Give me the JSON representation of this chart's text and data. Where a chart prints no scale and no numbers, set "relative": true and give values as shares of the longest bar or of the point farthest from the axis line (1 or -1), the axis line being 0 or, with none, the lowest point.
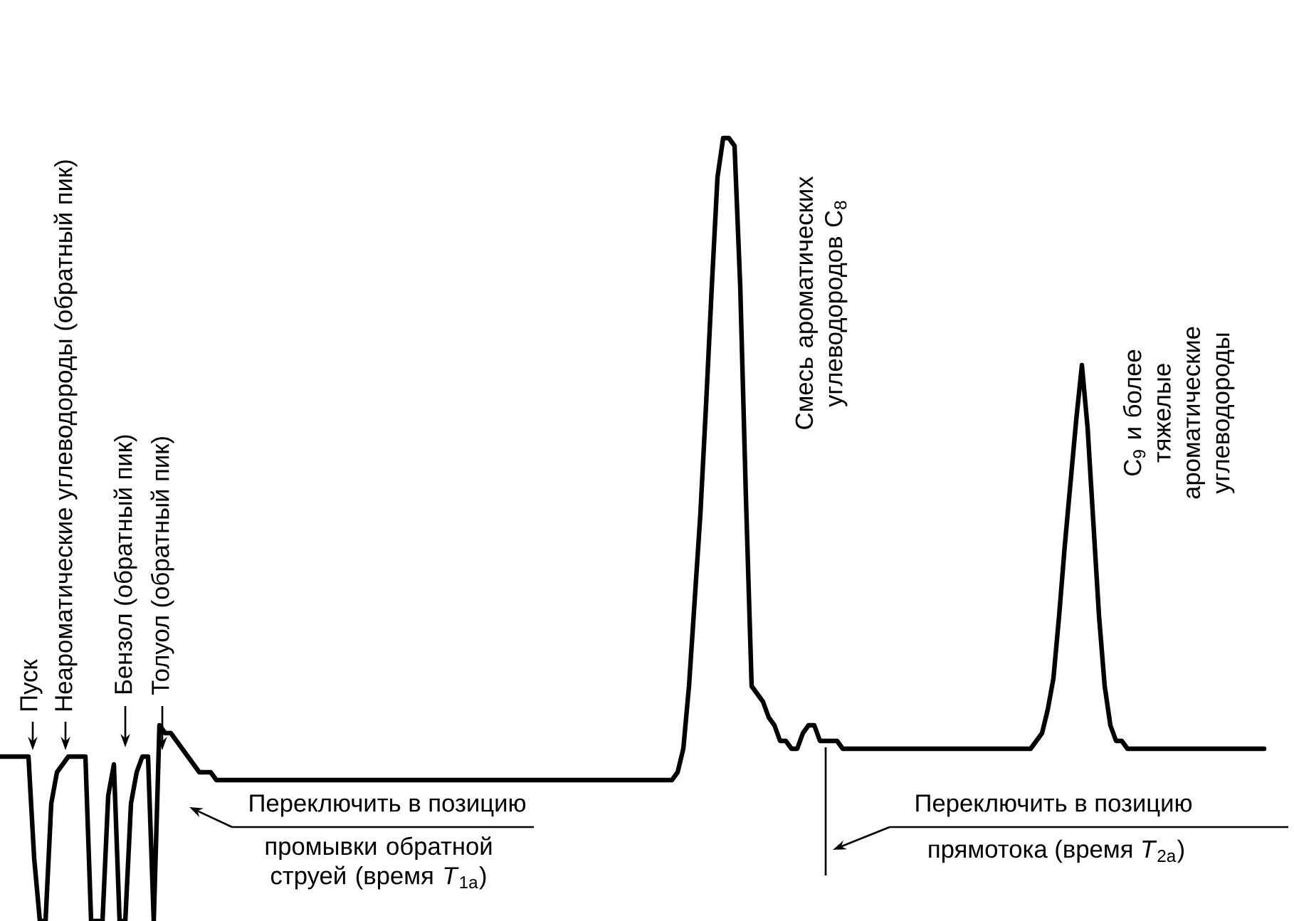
{
  "chart_data": {
    "type": "line",
    "relative": true,
    "categories": [
      null,
      null,
      null,
      null,
      null,
      null,
      null,
      null,
      null,
      null,
      null,
      null,
      null,
      null,
      null,
      null,
      null,
      null,
      null,
      null,
      null,
      null,
      null,
      null,
      null,
      null,
      null,
      null,
      null,
      null,
      null,
      null,
      null,
      null,
      null,
      null,
      null,
      null,
      null,
      null,
      null,
      null,
      null,
      null,
      null,
      null,
      null,
      null,
      null,
      null,
      null,
      null,
      null,
      null,
      null,
      null,
      null,
      null,
      null,
      null,
      null,
      null,
      null,
      null,
      null,
      null,
      null,
      null,
      null,
      null,
      null,
      null,
      null,
      null,
      null,
      null,
      null,
      null,
      null,
      null,
      null,
      null,
      null,
      null,
      null,
      null,
      null,
      null,
      null,
      null,
      null,
      null,
      null,
      null,
      null,
      null,
      null,
      null,
      null,
      null,
      null,
      null,
      null,
      null,
      null,
      null,
      null,
      null,
      null,
      null,
      null,
      null,
      null,
      null,
      null,
      null,
      null,
      null,
      null,
      null,
      null,
      null,
      null,
      null,
      null,
      null,
      null,
      null,
      null,
      null,
      null,
      null,
      null,
      null,
      null,
      null,
      null,
      null,
      null,
      null,
      null,
      null,
      null,
      null,
      null,
      null,
      null,
      null,
      null,
      null,
      null,
      null,
      null,
      null,
      null,
      null,
      null,
      null,
      null,
      null,
      null,
      null,
      null,
      null,
      null,
      null,
      null,
      null,
      null,
      null,
      null,
      null,
      null,
      null,
      null,
      null,
      null,
      null,
      null,
      null,
      null,
      null,
      null,
      null,
      null,
      null,
      null,
      null,
      null,
      null,
      null,
      null,
      null,
      null,
      null,
      null,
      null,
      null,
      null,
      null,
      null,
      null,
      null,
      null,
      null,
      null,
      null,
      null,
      null,
      null,
      null,
      null,
      null,
      null,
      null,
      null,
      null,
      null,
      null,
      null,
      null,
      null,
      null
    ],
    "series": [
      {
        "color": "#000000",
        "line_style": "solid",
        "values": [
          0.21,
          0.21,
          0.21,
          0.21,
          0.21,
          0.21,
          0.08,
          0,
          0,
          0.15,
          0.19,
          0.2,
          0.21,
          0.21,
          0.21,
          0.21,
          0,
          0,
          0,
          0.16,
          0.2,
          0,
          0,
          0.15,
          0.19,
          0.21,
          0.21,
          0,
          0.25,
          0.24,
          0.24,
          0.23,
          0.22,
          0.21,
          0.2,
          0.19,
          0.19,
          0.19,
          0.18,
          0.18,
          0.18,
          0.18,
          0.18,
          0.18,
          0.18,
          0.18,
          0.18,
          0.18,
          0.18,
          0.18,
          0.18,
          0.18,
          0.18,
          0.18,
          0.18,
          0.18,
          0.18,
          0.18,
          0.18,
          0.18,
          0.18,
          0.18,
          0.18,
          0.18,
          0.18,
          0.18,
          0.18,
          0.18,
          0.18,
          0.18,
          0.18,
          0.18,
          0.18,
          0.18,
          0.18,
          0.18,
          0.18,
          0.18,
          0.18,
          0.18,
          0.18,
          0.18,
          0.18,
          0.18,
          0.18,
          0.18,
          0.18,
          0.18,
          0.18,
          0.18,
          0.18,
          0.18,
          0.18,
          0.18,
          0.18,
          0.18,
          0.18,
          0.18,
          0.18,
          0.18,
          0.18,
          0.18,
          0.18,
          0.18,
          0.18,
          0.18,
          0.18,
          0.18,
          0.18,
          0.18,
          0.18,
          0.18,
          0.18,
          0.18,
          0.18,
          0.18,
          0.18,
          0.18,
          0.18,
          0.19,
          0.22,
          0.3,
          0.41,
          0.52,
          0.66,
          0.81,
          0.95,
          1,
          1,
          0.99,
          0.81,
          0.54,
          0.3,
          0.29,
          0.28,
          0.26,
          0.25,
          0.23,
          0.23,
          0.22,
          0.22,
          0.24,
          0.25,
          0.25,
          0.23,
          0.23,
          0.23,
          0.23,
          0.22,
          0.22,
          0.22,
          0.22,
          0.22,
          0.22,
          0.22,
          0.22,
          0.22,
          0.22,
          0.22,
          0.22,
          0.22,
          0.22,
          0.22,
          0.22,
          0.22,
          0.22,
          0.22,
          0.22,
          0.22,
          0.22,
          0.22,
          0.22,
          0.22,
          0.22,
          0.22,
          0.22,
          0.22,
          0.22,
          0.22,
          0.22,
          0.22,
          0.22,
          0.23,
          0.24,
          0.27,
          0.31,
          0.39,
          0.48,
          0.56,
          0.64,
          0.71,
          0.63,
          0.51,
          0.39,
          0.3,
          0.25,
          0.23,
          0.23,
          0.22,
          0.22,
          0.22,
          0.22,
          0.22,
          0.22,
          0.22,
          0.22,
          0.22,
          0.22,
          0.22,
          0.22,
          0.22,
          0.22,
          0.22,
          0.22,
          0.22,
          0.22,
          0.22,
          0.22,
          0.22,
          0.22,
          0.22,
          0.22,
          0.22
        ]
      }
    ],
    "annotations": [
      "Пуск",
      "Неароматические углеводороды (обратный пик)",
      "Бензол (обратный пик)",
      "Толуол (обратный пик)",
      "Смесь ароматических углеводородов C$_{8}$",
      "C$_{9}$ и более тяжелые ароматические углеводороды",
      "Переключить в позицию",
      "промывки обратной струей (время *T*$_{1а}$)",
      "Переключить в позицию",
      "прямотока (время *T*$_{2а}$)"
    ]
  }
}
